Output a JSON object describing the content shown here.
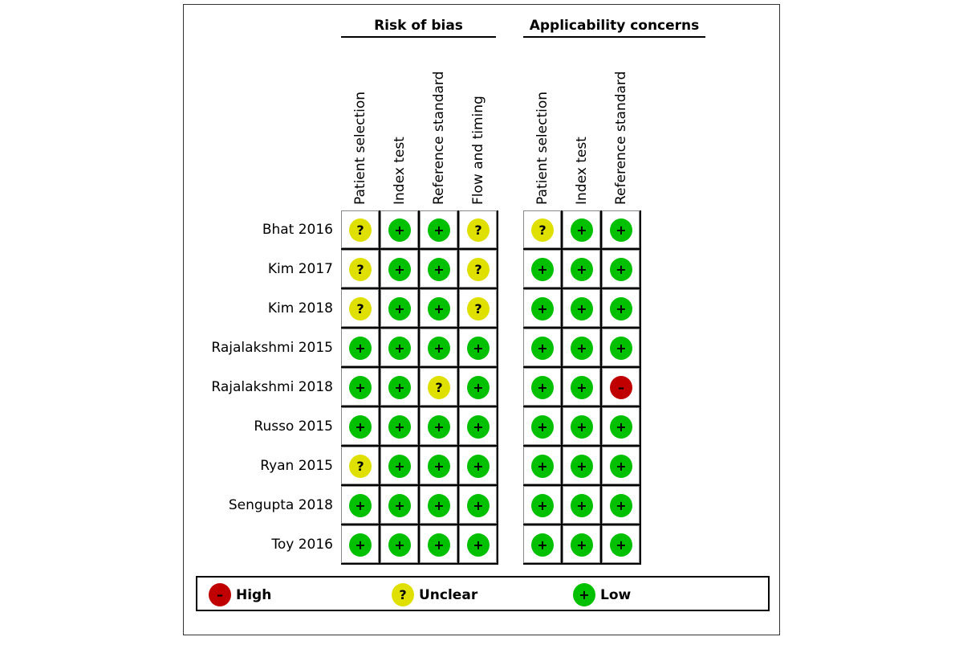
{
  "chart_data": {
    "type": "table",
    "groups": [
      {
        "title": "Risk of bias",
        "domains": [
          "Patient selection",
          "Index test",
          "Reference standard",
          "Flow and timing"
        ]
      },
      {
        "title": "Applicability concerns",
        "domains": [
          "Patient selection",
          "Index test",
          "Reference standard"
        ]
      }
    ],
    "studies": [
      "Bhat 2016",
      "Kim 2017",
      "Kim 2018",
      "Rajalakshmi 2015",
      "Rajalakshmi 2018",
      "Russo 2015",
      "Ryan 2015",
      "Sengupta 2018",
      "Toy 2016"
    ],
    "risk_of_bias": [
      [
        "unclear",
        "low",
        "low",
        "unclear"
      ],
      [
        "unclear",
        "low",
        "low",
        "unclear"
      ],
      [
        "unclear",
        "low",
        "low",
        "unclear"
      ],
      [
        "low",
        "low",
        "low",
        "low"
      ],
      [
        "low",
        "low",
        "unclear",
        "low"
      ],
      [
        "low",
        "low",
        "low",
        "low"
      ],
      [
        "unclear",
        "low",
        "low",
        "low"
      ],
      [
        "low",
        "low",
        "low",
        "low"
      ],
      [
        "low",
        "low",
        "low",
        "low"
      ]
    ],
    "applicability": [
      [
        "unclear",
        "low",
        "low"
      ],
      [
        "low",
        "low",
        "low"
      ],
      [
        "low",
        "low",
        "low"
      ],
      [
        "low",
        "low",
        "low"
      ],
      [
        "low",
        "low",
        "high"
      ],
      [
        "low",
        "low",
        "low"
      ],
      [
        "low",
        "low",
        "low"
      ],
      [
        "low",
        "low",
        "low"
      ],
      [
        "low",
        "low",
        "low"
      ]
    ],
    "legend": [
      {
        "key": "high",
        "label": "High",
        "symbol": "–",
        "color": "#c00000"
      },
      {
        "key": "unclear",
        "label": "Unclear",
        "symbol": "?",
        "color": "#e0e000"
      },
      {
        "key": "low",
        "label": "Low",
        "symbol": "+",
        "color": "#00c000"
      }
    ]
  }
}
